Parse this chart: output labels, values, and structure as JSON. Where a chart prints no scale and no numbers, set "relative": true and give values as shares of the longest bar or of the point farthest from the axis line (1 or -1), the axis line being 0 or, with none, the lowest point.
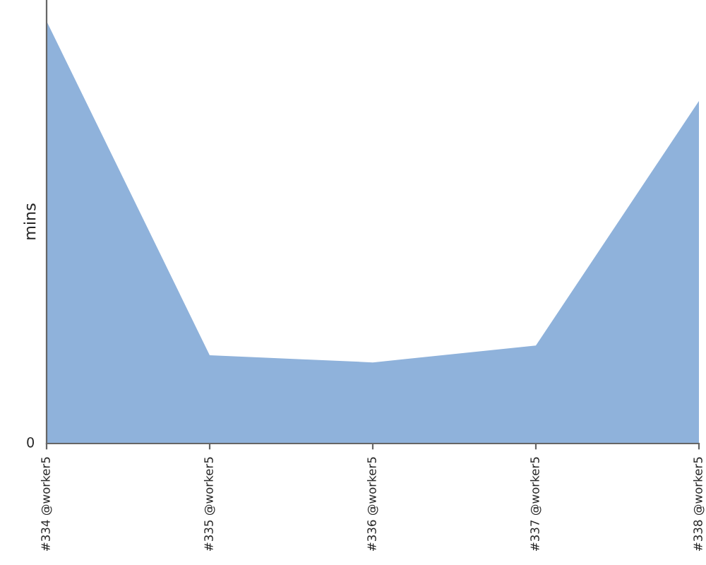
{
  "chart_data": {
    "type": "area",
    "ylabel": "mins",
    "relative": true,
    "annotations": [
      "0"
    ],
    "categories": [
      "#334 @worker5",
      "#335 @worker5",
      "#336 @worker5",
      "#337 @worker5",
      "#338 @worker5"
    ],
    "series": [
      {
        "color": "#8fb2db",
        "values": [
          1.0,
          0.209,
          0.192,
          0.232,
          0.811
        ]
      }
    ],
    "grid": false,
    "legend": false
  }
}
